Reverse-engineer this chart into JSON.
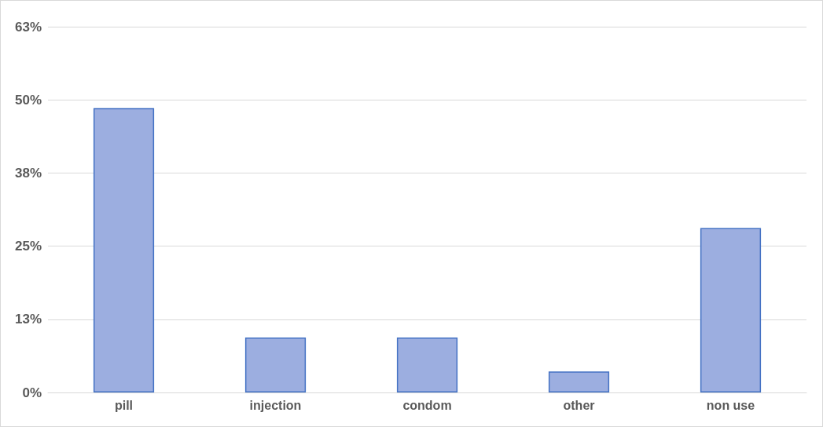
{
  "chart_data": {
    "type": "bar",
    "categories": [
      "pill",
      "injection",
      "condom",
      "other",
      "non use"
    ],
    "values": [
      48.6,
      9.4,
      9.4,
      3.6,
      28.1
    ],
    "color": "#9caee0",
    "ylim": [
      0,
      62.5
    ],
    "yticks": [
      {
        "value": 0,
        "label": "0%"
      },
      {
        "value": 12.5,
        "label": "13%"
      },
      {
        "value": 25,
        "label": "25%"
      },
      {
        "value": 37.5,
        "label": "38%"
      },
      {
        "value": 50,
        "label": "50%"
      },
      {
        "value": 62.5,
        "label": "63%"
      }
    ],
    "grid": "y"
  }
}
